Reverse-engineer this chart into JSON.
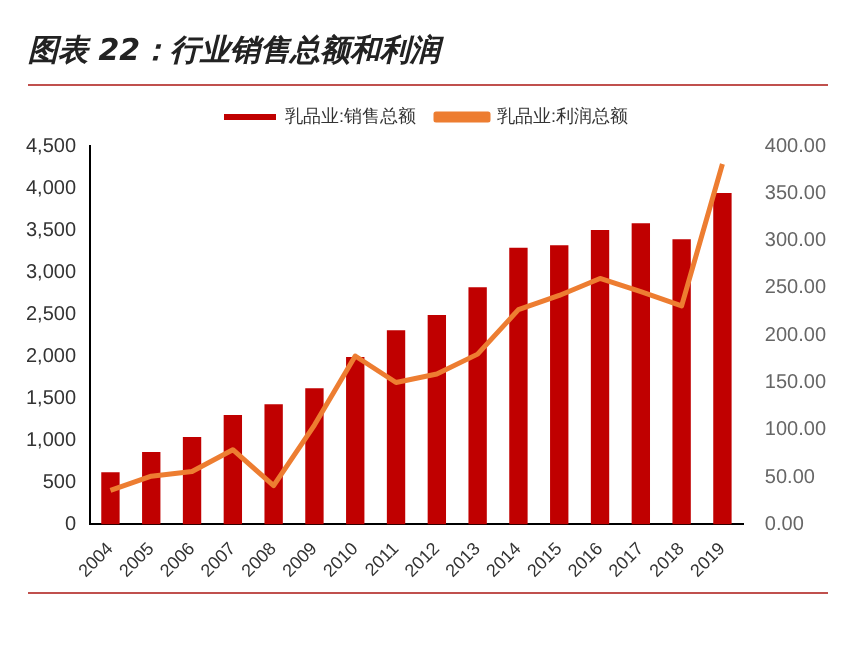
{
  "chart_data": {
    "type": "bar",
    "title": "图表 22：行业销售总额和利润",
    "categories": [
      "2004",
      "2005",
      "2006",
      "2007",
      "2008",
      "2009",
      "2010",
      "2011",
      "2012",
      "2013",
      "2014",
      "2015",
      "2016",
      "2017",
      "2018",
      "2019"
    ],
    "series": [
      {
        "name": "乳品业:销售总额",
        "color": "#c00000",
        "values": [
          620,
          860,
          1040,
          1300,
          1430,
          1620,
          1990,
          2310,
          2490,
          2820,
          3290,
          3320,
          3500,
          3580,
          3390,
          3940
        ]
      },
      {
        "name": "乳品业:利润总额",
        "type": "line",
        "axis": "y2",
        "color": "#ed7d31",
        "values": [
          36,
          51,
          56,
          79,
          41,
          105,
          178,
          150,
          159,
          180,
          227,
          242,
          260,
          246,
          231,
          381
        ]
      }
    ],
    "ylim": [
      0,
      4500
    ],
    "yticks": [
      {
        "value": 0,
        "label": "0"
      },
      {
        "value": 500,
        "label": "500"
      },
      {
        "value": 1000,
        "label": "1,000"
      },
      {
        "value": 1500,
        "label": "1,500"
      },
      {
        "value": 2000,
        "label": "2,000"
      },
      {
        "value": 2500,
        "label": "2,500"
      },
      {
        "value": 3000,
        "label": "3,000"
      },
      {
        "value": 3500,
        "label": "3,500"
      },
      {
        "value": 4000,
        "label": "4,000"
      },
      {
        "value": 4500,
        "label": "4,500"
      }
    ],
    "y2lim": [
      0,
      400
    ],
    "y2ticks": [
      {
        "value": 0,
        "label": "0.00"
      },
      {
        "value": 50,
        "label": "50.00"
      },
      {
        "value": 100,
        "label": "100.00"
      },
      {
        "value": 150,
        "label": "150.00"
      },
      {
        "value": 200,
        "label": "200.00"
      },
      {
        "value": 250,
        "label": "250.00"
      },
      {
        "value": 300,
        "label": "300.00"
      },
      {
        "value": 350,
        "label": "350.00"
      },
      {
        "value": 400,
        "label": "400.00"
      }
    ],
    "grid": false,
    "legend": "top",
    "marker": "none",
    "line_style": "solid"
  }
}
